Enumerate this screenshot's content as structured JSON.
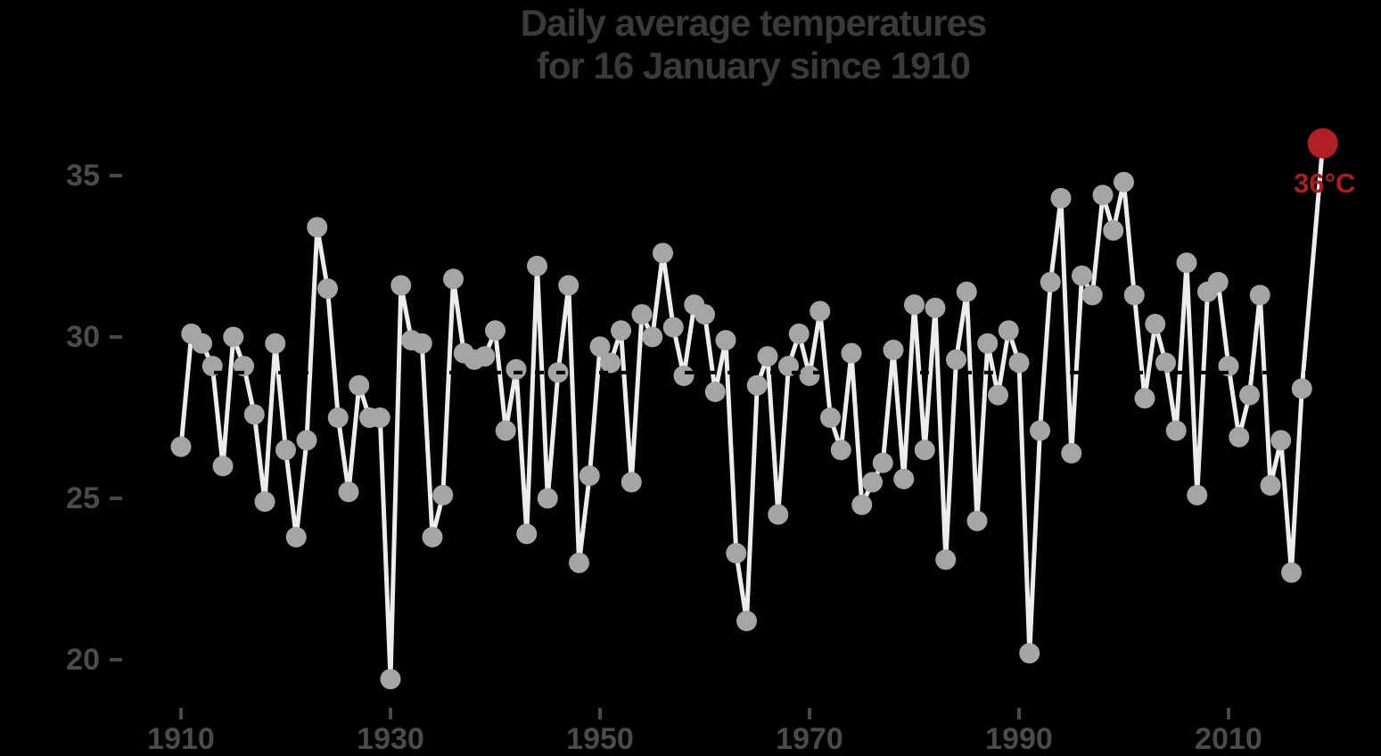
{
  "title": {
    "line1": "Daily average temperatures",
    "line2": "for 16 January since 1910"
  },
  "colors": {
    "background": "#000000",
    "line": "#ececec",
    "marker": "#a5a5a5",
    "highlight": "#b01f24",
    "highlight_text": "#ab1d22",
    "title_text": "#3a3a3c",
    "axis_text": "#4b4b4d",
    "tick_mark": "#48484a",
    "hidden_label_artifact": "#000000"
  },
  "chart_data": {
    "type": "line",
    "title": "Daily average temperatures for 16 January since 1910",
    "xlabel": "",
    "ylabel": "",
    "unit": "°C",
    "x": [
      1910,
      1911,
      1912,
      1913,
      1914,
      1915,
      1916,
      1917,
      1918,
      1919,
      1920,
      1921,
      1922,
      1923,
      1924,
      1925,
      1926,
      1927,
      1928,
      1929,
      1930,
      1931,
      1932,
      1933,
      1934,
      1935,
      1936,
      1937,
      1938,
      1939,
      1940,
      1941,
      1942,
      1943,
      1944,
      1945,
      1946,
      1947,
      1948,
      1949,
      1950,
      1951,
      1952,
      1953,
      1954,
      1955,
      1956,
      1957,
      1958,
      1959,
      1960,
      1961,
      1962,
      1963,
      1964,
      1965,
      1966,
      1967,
      1968,
      1969,
      1970,
      1971,
      1972,
      1973,
      1974,
      1975,
      1976,
      1977,
      1978,
      1979,
      1980,
      1981,
      1982,
      1983,
      1984,
      1985,
      1986,
      1987,
      1988,
      1989,
      1990,
      1991,
      1992,
      1993,
      1994,
      1995,
      1996,
      1997,
      1998,
      1999,
      2000,
      2001,
      2002,
      2003,
      2004,
      2005,
      2006,
      2007,
      2008,
      2009,
      2010,
      2011,
      2012,
      2013,
      2014,
      2015,
      2016,
      2017,
      2018,
      2019
    ],
    "values": [
      26.6,
      30.1,
      29.8,
      29.1,
      26.0,
      30.0,
      29.1,
      27.6,
      24.9,
      29.8,
      26.5,
      23.8,
      26.8,
      33.4,
      31.5,
      27.5,
      25.2,
      28.5,
      27.5,
      27.5,
      19.4,
      31.6,
      29.9,
      29.8,
      23.8,
      25.1,
      31.8,
      29.5,
      29.3,
      29.4,
      30.2,
      27.1,
      29.0,
      23.9,
      32.2,
      25.0,
      28.9,
      31.6,
      23.0,
      25.7,
      29.7,
      29.2,
      30.2,
      25.5,
      30.7,
      30.0,
      32.6,
      30.3,
      28.8,
      31.0,
      30.7,
      28.3,
      29.9,
      23.3,
      21.2,
      28.5,
      29.4,
      24.5,
      29.1,
      30.1,
      28.8,
      30.8,
      27.5,
      26.5,
      29.5,
      24.8,
      25.5,
      26.1,
      29.6,
      25.6,
      31.0,
      26.5,
      30.9,
      23.1,
      29.3,
      31.4,
      24.3,
      29.8,
      28.2,
      30.2,
      29.2,
      20.2,
      27.1,
      31.7,
      34.3,
      26.4,
      31.9,
      31.3,
      34.4,
      33.3,
      34.8,
      31.3,
      28.1,
      30.4,
      29.2,
      27.1,
      32.3,
      25.1,
      31.4,
      31.7,
      29.1,
      26.9,
      28.2,
      31.3,
      25.4,
      26.8,
      22.7,
      28.4,
      null,
      36.0
    ],
    "highlight": {
      "year": 2019,
      "value": 36,
      "label": "36°C"
    },
    "yticks": [
      35,
      30,
      25,
      20
    ],
    "xticks": [
      1910,
      1930,
      1950,
      1970,
      1990,
      2010
    ],
    "ylim": [
      18.5,
      36.5
    ],
    "xlim": [
      1909,
      2020
    ],
    "grid": false,
    "legend": "none",
    "mean_line_artifact": {
      "value": 28.9,
      "style": "black-dashed-over-series"
    }
  }
}
